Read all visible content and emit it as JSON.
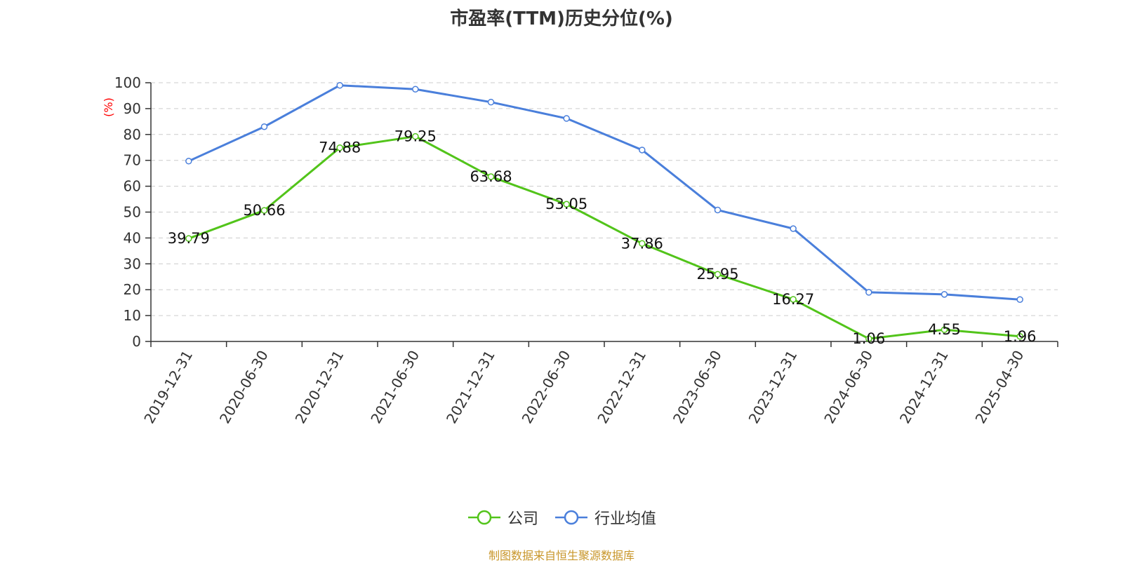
{
  "chart_data": {
    "type": "line",
    "title": "市盈率(TTM)历史分位(%)",
    "ylabel": "(%)",
    "xlabel": "",
    "ylim": [
      0,
      100
    ],
    "y_ticks": [
      "0",
      "10",
      "20",
      "30",
      "40",
      "50",
      "60",
      "70",
      "80",
      "90",
      "100"
    ],
    "categories": [
      "2019-12-31",
      "2020-06-30",
      "2020-12-31",
      "2021-06-30",
      "2021-12-31",
      "2022-06-30",
      "2022-12-31",
      "2023-06-30",
      "2023-12-31",
      "2024-06-30",
      "2024-12-31",
      "2025-04-30"
    ],
    "series": [
      {
        "name": "公司",
        "color": "#52c41a",
        "data_labels": true,
        "values": [
          39.79,
          50.66,
          74.88,
          79.25,
          63.68,
          53.05,
          37.86,
          25.95,
          16.27,
          1.06,
          4.55,
          1.96
        ]
      },
      {
        "name": "行业均值",
        "color": "#4a7fdb",
        "data_labels": false,
        "values": [
          69.7,
          83.0,
          99.0,
          97.5,
          92.5,
          86.2,
          74.0,
          50.8,
          43.6,
          19.0,
          18.2,
          16.2
        ]
      }
    ],
    "grid": true,
    "legend": "bottom-center"
  },
  "source": {
    "text": "制图数据来自恒生聚源数据库",
    "color": "#c8962a"
  }
}
